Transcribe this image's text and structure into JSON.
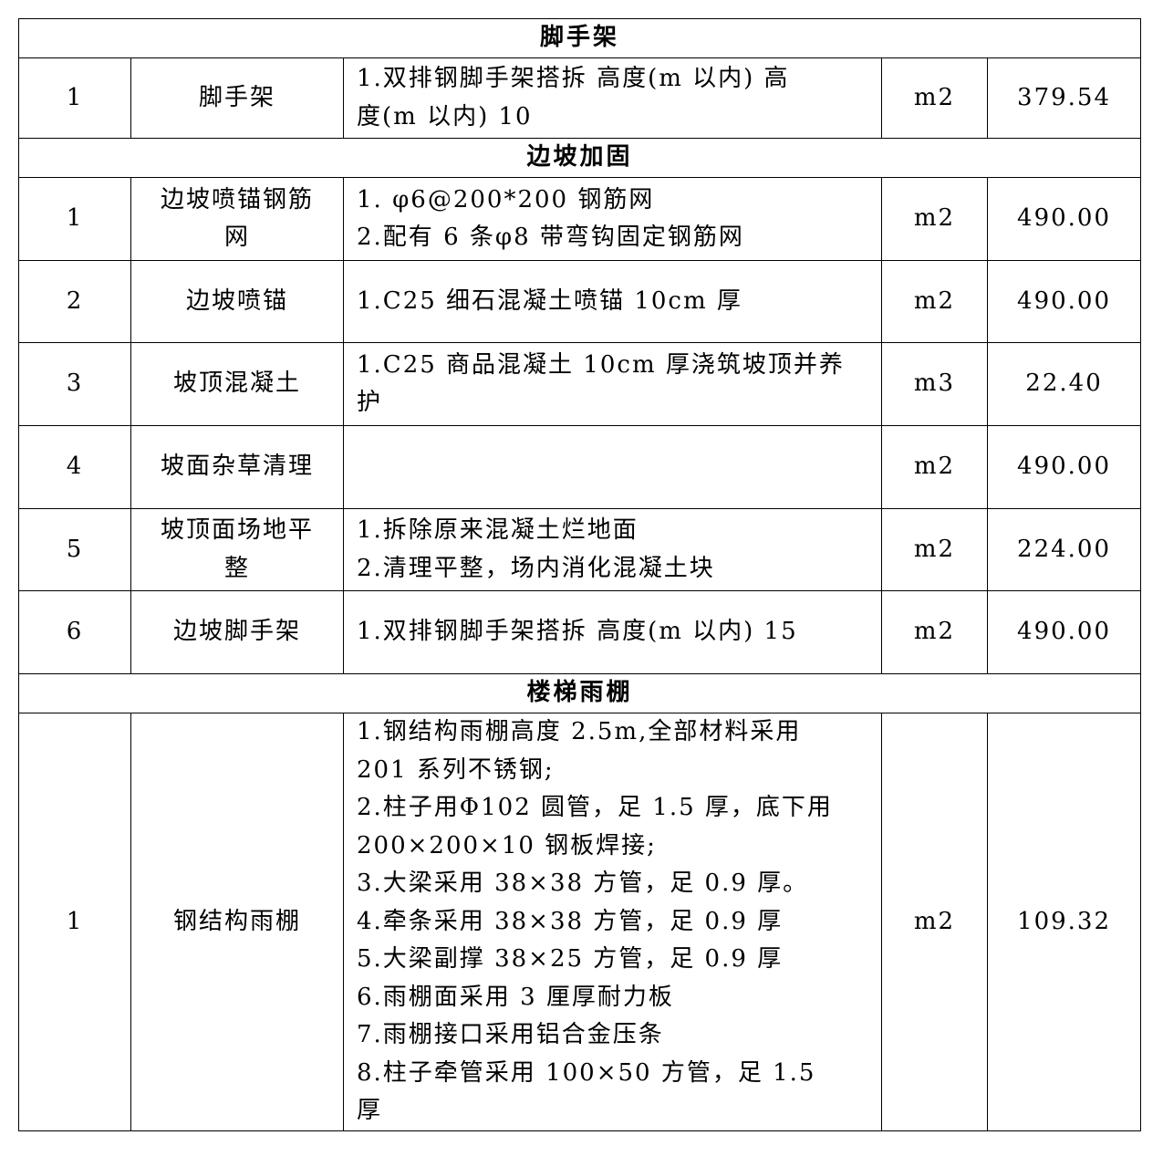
{
  "sections": [
    {
      "title": "脚手架",
      "rows": [
        {
          "no": "1",
          "name": [
            "脚手架"
          ],
          "desc": [
            "1.双排钢脚手架搭拆 高度(m 以内) 高",
            "度(m 以内) 10"
          ],
          "unit": "m2",
          "qty": "379.54"
        }
      ]
    },
    {
      "title": "边坡加固",
      "rows": [
        {
          "no": "1",
          "name": [
            "边坡喷锚钢筋",
            "网"
          ],
          "desc": [
            "1. φ6@200*200 钢筋网",
            "2.配有 6 条φ8 带弯钩固定钢筋网"
          ],
          "unit": "m2",
          "qty": "490.00"
        },
        {
          "no": "2",
          "name": [
            "边坡喷锚"
          ],
          "desc": [
            "1.C25 细石混凝土喷锚 10cm 厚"
          ],
          "unit": "m2",
          "qty": "490.00"
        },
        {
          "no": "3",
          "name": [
            "坡顶混凝土"
          ],
          "desc": [
            "1.C25 商品混凝土 10cm 厚浇筑坡顶并养",
            "护"
          ],
          "unit": "m3",
          "qty": "22.40"
        },
        {
          "no": "4",
          "name": [
            "坡面杂草清理"
          ],
          "desc": [],
          "unit": "m2",
          "qty": "490.00"
        },
        {
          "no": "5",
          "name": [
            "坡顶面场地平",
            "整"
          ],
          "desc": [
            "1.拆除原来混凝土烂地面",
            "2.清理平整，场内消化混凝土块"
          ],
          "unit": "m2",
          "qty": "224.00"
        },
        {
          "no": "6",
          "name": [
            "边坡脚手架"
          ],
          "desc": [
            "1.双排钢脚手架搭拆 高度(m 以内) 15"
          ],
          "unit": "m2",
          "qty": "490.00"
        }
      ]
    },
    {
      "title": "楼梯雨棚",
      "rows": [
        {
          "no": "1",
          "name": [
            "钢结构雨棚"
          ],
          "desc": [
            "1.钢结构雨棚高度 2.5m,全部材料采用",
            "201 系列不锈钢;",
            "2.柱子用Φ102 圆管，足 1.5 厚，底下用",
            "200×200×10 钢板焊接;",
            "3.大梁采用 38×38 方管，足 0.9 厚。",
            "4.牵条采用 38×38 方管，足 0.9 厚",
            "5.大梁副撑 38×25 方管，足 0.9 厚",
            "6.雨棚面采用 3 厘厚耐力板",
            "7.雨棚接口采用铝合金压条",
            "8.柱子牵管采用 100×50 方管，足 1.5",
            "厚"
          ],
          "unit": "m2",
          "qty": "109.32"
        }
      ]
    }
  ]
}
